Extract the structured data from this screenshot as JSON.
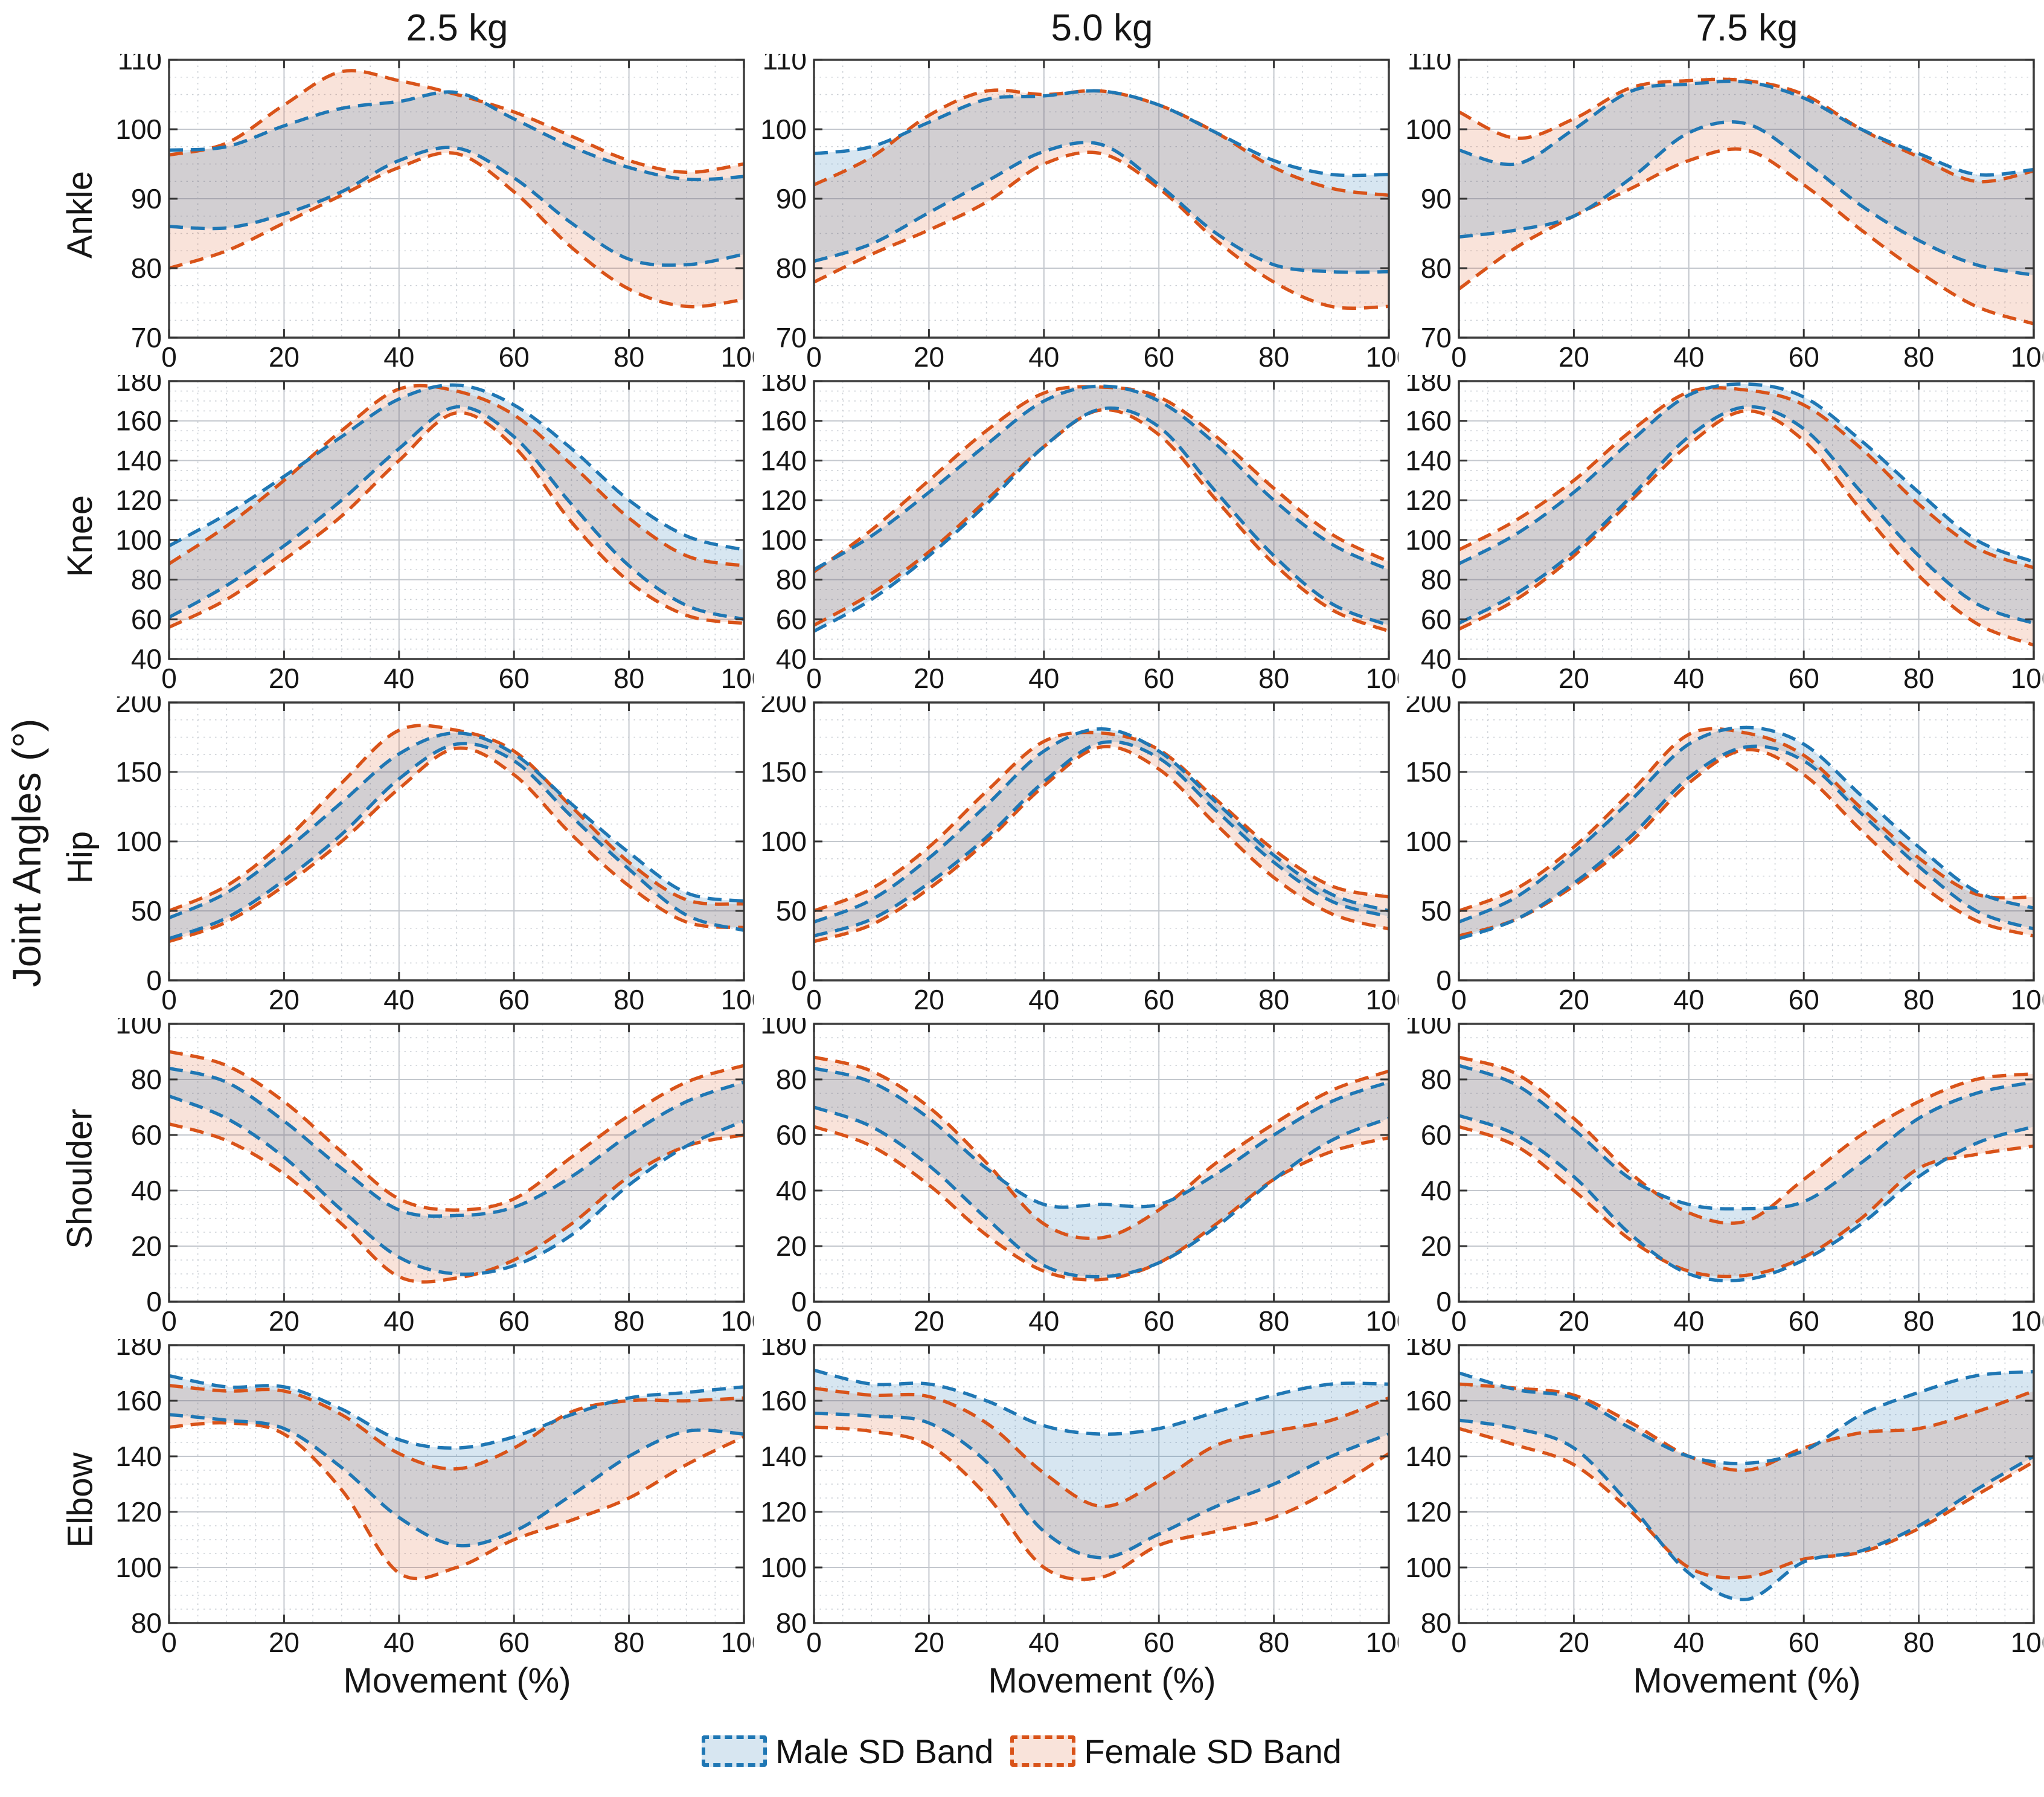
{
  "figure": {
    "ylabel": "Joint Angles (°)",
    "xlabel": "Movement (%)",
    "col_titles": [
      "2.5 kg",
      "5.0 kg",
      "7.5 kg"
    ],
    "row_labels": [
      "Ankle",
      "Knee",
      "Hip",
      "Shoulder",
      "Elbow"
    ],
    "colors": {
      "male_line": "#1f77b4",
      "male_fill": "rgba(31,119,180,0.18)",
      "female_line": "#d95319",
      "female_fill": "rgba(217,83,25,0.16)",
      "grid_major": "#c4c8ce",
      "grid_minor": "#ccd0d6",
      "axis_box": "#3f3f3f"
    },
    "legend": [
      {
        "label": "Male SD Band"
      },
      {
        "label": "Female SD Band"
      }
    ]
  },
  "chart_data": {
    "type": "area",
    "note": "15 subplots (5 joints x 3 loads). Each subplot shows male and female mean+/-SD bands (upper/lower bounds) of joint angle vs movement percentage.",
    "x": [
      0,
      10,
      20,
      30,
      40,
      50,
      60,
      70,
      80,
      90,
      100
    ],
    "xlim": [
      0,
      100
    ],
    "xticks": [
      0,
      20,
      40,
      60,
      80,
      100
    ],
    "legend_position": "bottom-center",
    "grid": true,
    "subplots": [
      {
        "row": "Ankle",
        "col": "2.5 kg",
        "ylim": [
          70,
          110
        ],
        "yticks": [
          70,
          80,
          90,
          100,
          110
        ],
        "series": {
          "male_upper": [
            97,
            97.5,
            100.5,
            103,
            104,
            105.3,
            101.5,
            97.5,
            94.5,
            92.8,
            93.2
          ],
          "male_lower": [
            86,
            85.8,
            87.8,
            91,
            95.5,
            97.3,
            93,
            86.5,
            81.3,
            80.5,
            82
          ],
          "female_upper": [
            96.3,
            98,
            103.5,
            108.3,
            107,
            105,
            102.5,
            99,
            95.5,
            93.8,
            95
          ],
          "female_lower": [
            80,
            82.5,
            86.5,
            90.5,
            94.5,
            96.5,
            91,
            83,
            77,
            74.5,
            75.5
          ]
        }
      },
      {
        "row": "Ankle",
        "col": "5.0 kg",
        "ylim": [
          70,
          110
        ],
        "yticks": [
          70,
          80,
          90,
          100,
          110
        ],
        "series": {
          "male_upper": [
            96.5,
            97.5,
            101,
            104.3,
            104.8,
            105.5,
            103.5,
            99.5,
            95.5,
            93.5,
            93.5
          ],
          "male_lower": [
            81,
            83.5,
            88,
            92.5,
            96.8,
            97.8,
            92,
            85,
            80.5,
            79.5,
            79.5
          ],
          "female_upper": [
            92,
            96,
            102,
            105.5,
            105,
            105.5,
            103.5,
            99.5,
            94.5,
            91.5,
            90.5
          ],
          "female_lower": [
            78,
            82,
            85.5,
            89.5,
            95,
            96.5,
            91.5,
            84,
            78,
            74.5,
            74.5
          ]
        }
      },
      {
        "row": "Ankle",
        "col": "7.5 kg",
        "ylim": [
          70,
          110
        ],
        "yticks": [
          70,
          80,
          90,
          100,
          110
        ],
        "series": {
          "male_upper": [
            97,
            95,
            100,
            105.5,
            106.5,
            106.8,
            104.5,
            100,
            96.5,
            93.5,
            94.2
          ],
          "male_lower": [
            84.5,
            85.5,
            87.5,
            93,
            99.5,
            100.8,
            95.5,
            89,
            84,
            80.5,
            79
          ],
          "female_upper": [
            102.5,
            98.7,
            101.5,
            106,
            107,
            107,
            105,
            100,
            96,
            92.5,
            94
          ],
          "female_lower": [
            77,
            83,
            87.5,
            91.5,
            95.5,
            97,
            92,
            85.5,
            79.5,
            74.5,
            72
          ]
        }
      },
      {
        "row": "Knee",
        "col": "2.5 kg",
        "ylim": [
          40,
          180
        ],
        "yticks": [
          40,
          60,
          80,
          100,
          120,
          140,
          160,
          180
        ],
        "series": {
          "male_upper": [
            97,
            113,
            132,
            152,
            171,
            178,
            168,
            146,
            120,
            102,
            95
          ],
          "male_lower": [
            61,
            77,
            97,
            120,
            146,
            167,
            152,
            118,
            87,
            67,
            60
          ],
          "female_upper": [
            88,
            107,
            130,
            155,
            176,
            175,
            163,
            138,
            111,
            92,
            87
          ],
          "female_lower": [
            56,
            70,
            90,
            112,
            140,
            164,
            147,
            109,
            79,
            62,
            58
          ]
        }
      },
      {
        "row": "Knee",
        "col": "5.0 kg",
        "ylim": [
          40,
          180
        ],
        "yticks": [
          40,
          60,
          80,
          100,
          120,
          140,
          160,
          180
        ],
        "series": {
          "male_upper": [
            85,
            102,
            124,
            148,
            170,
            177.5,
            170,
            148,
            120,
            98,
            85
          ],
          "male_lower": [
            54,
            70,
            92,
            118,
            147,
            166,
            157,
            124,
            92,
            68,
            57
          ],
          "female_upper": [
            84,
            105,
            130,
            155,
            174,
            177,
            172,
            152,
            126,
            103,
            89
          ],
          "female_lower": [
            57,
            73,
            94,
            120,
            147,
            165.5,
            153,
            120,
            88,
            65,
            54
          ]
        }
      },
      {
        "row": "Knee",
        "col": "7.5 kg",
        "ylim": [
          40,
          180
        ],
        "yticks": [
          40,
          60,
          80,
          100,
          120,
          140,
          160,
          180
        ],
        "series": {
          "male_upper": [
            88,
            103,
            124,
            150,
            173,
            178.5,
            172,
            150,
            124,
            100,
            89
          ],
          "male_lower": [
            58,
            73,
            94,
            122,
            152,
            167,
            156,
            124,
            92,
            68,
            58
          ],
          "female_upper": [
            95,
            110,
            130,
            155,
            174.5,
            175.5,
            168,
            146,
            118,
            96,
            86
          ],
          "female_lower": [
            55,
            70,
            92,
            120,
            148,
            165,
            150,
            115,
            82,
            58,
            47
          ]
        }
      },
      {
        "row": "Hip",
        "col": "2.5 kg",
        "ylim": [
          0,
          200
        ],
        "yticks": [
          0,
          50,
          100,
          150,
          200
        ],
        "series": {
          "male_upper": [
            45,
            63,
            93,
            128,
            163,
            178,
            163,
            127,
            92,
            63,
            57
          ],
          "male_lower": [
            30,
            45,
            72,
            105,
            145,
            170,
            158,
            118,
            80,
            47,
            36
          ],
          "female_upper": [
            50,
            68,
            100,
            142,
            180,
            180,
            165,
            125,
            85,
            58,
            55
          ],
          "female_lower": [
            28,
            42,
            68,
            100,
            138,
            167,
            148,
            105,
            68,
            42,
            38
          ]
        }
      },
      {
        "row": "Hip",
        "col": "5.0 kg",
        "ylim": [
          0,
          200
        ],
        "yticks": [
          0,
          50,
          100,
          150,
          200
        ],
        "series": {
          "male_upper": [
            42,
            58,
            88,
            126,
            165,
            181,
            165,
            128,
            90,
            62,
            50
          ],
          "male_lower": [
            32,
            44,
            70,
            103,
            143,
            171,
            160,
            122,
            85,
            57,
            46
          ],
          "female_upper": [
            50,
            66,
            96,
            136,
            172,
            178,
            166,
            130,
            94,
            68,
            60
          ],
          "female_lower": [
            28,
            40,
            66,
            100,
            140,
            168,
            152,
            112,
            74,
            48,
            37
          ]
        }
      },
      {
        "row": "Hip",
        "col": "7.5 kg",
        "ylim": [
          0,
          200
        ],
        "yticks": [
          0,
          50,
          100,
          150,
          200
        ],
        "series": {
          "male_upper": [
            42,
            60,
            92,
            130,
            170,
            182,
            170,
            133,
            96,
            64,
            52
          ],
          "male_lower": [
            30,
            44,
            70,
            104,
            146,
            168,
            158,
            120,
            82,
            50,
            37
          ],
          "female_upper": [
            50,
            66,
            96,
            136,
            177,
            178,
            162,
            124,
            88,
            62,
            60
          ],
          "female_lower": [
            32,
            44,
            68,
            100,
            142,
            166,
            148,
            108,
            70,
            43,
            32
          ]
        }
      },
      {
        "row": "Shoulder",
        "col": "2.5 kg",
        "ylim": [
          0,
          100
        ],
        "yticks": [
          0,
          20,
          40,
          60,
          80,
          100
        ],
        "series": {
          "male_upper": [
            84,
            79,
            65,
            48,
            33,
            31,
            34,
            45,
            60,
            72,
            79
          ],
          "male_lower": [
            74,
            66,
            52,
            33,
            16,
            10,
            13,
            24,
            42,
            56,
            65
          ],
          "female_upper": [
            90,
            85,
            72,
            54,
            37,
            33,
            37,
            52,
            67,
            79,
            85
          ],
          "female_lower": [
            64,
            58,
            46,
            28,
            9,
            8.5,
            15,
            28,
            45,
            56,
            60
          ]
        }
      },
      {
        "row": "Shoulder",
        "col": "5.0 kg",
        "ylim": [
          0,
          100
        ],
        "yticks": [
          0,
          20,
          40,
          60,
          80,
          100
        ],
        "series": {
          "male_upper": [
            84,
            79,
            66,
            48,
            35,
            35,
            35,
            46,
            60,
            72,
            79
          ],
          "male_lower": [
            70,
            63,
            49,
            30,
            13,
            9,
            14,
            27,
            44,
            58,
            66
          ],
          "female_upper": [
            88,
            83,
            70,
            50,
            28,
            23,
            33,
            50,
            64,
            76,
            83
          ],
          "female_lower": [
            63,
            56,
            42,
            24,
            11,
            8,
            14,
            28,
            44,
            54,
            59
          ]
        }
      },
      {
        "row": "Shoulder",
        "col": "7.5 kg",
        "ylim": [
          0,
          100
        ],
        "yticks": [
          0,
          20,
          40,
          60,
          80,
          100
        ],
        "series": {
          "male_upper": [
            85,
            78,
            62,
            44,
            35,
            33.5,
            36,
            50,
            66,
            75,
            79
          ],
          "male_lower": [
            67,
            60,
            45,
            24,
            10,
            8,
            15,
            28,
            45,
            57,
            63
          ],
          "female_upper": [
            88,
            82,
            66,
            46,
            32,
            29,
            44,
            60,
            72,
            80,
            82
          ],
          "female_lower": [
            63,
            56,
            40,
            22,
            11,
            9.5,
            16,
            30,
            48,
            53,
            56
          ]
        }
      },
      {
        "row": "Elbow",
        "col": "2.5 kg",
        "ylim": [
          80,
          180
        ],
        "yticks": [
          80,
          100,
          120,
          140,
          160,
          180
        ],
        "series": {
          "male_upper": [
            169,
            165,
            165,
            157,
            146,
            143,
            147,
            155,
            161,
            163,
            165
          ],
          "male_lower": [
            155,
            153,
            150,
            136,
            118,
            108,
            113,
            126,
            140,
            149,
            148
          ],
          "female_upper": [
            165.5,
            163.5,
            163.5,
            155,
            141,
            135.5,
            143,
            156,
            160,
            160,
            161
          ],
          "female_lower": [
            150.5,
            152,
            148,
            128,
            98,
            100,
            110,
            117,
            125,
            137,
            147
          ]
        }
      },
      {
        "row": "Elbow",
        "col": "5.0 kg",
        "ylim": [
          80,
          180
        ],
        "yticks": [
          80,
          100,
          120,
          140,
          160,
          180
        ],
        "series": {
          "male_upper": [
            171,
            166,
            166,
            160,
            151,
            148,
            150,
            156,
            162,
            166,
            166
          ],
          "male_lower": [
            155.5,
            154.5,
            152,
            138,
            113,
            103.5,
            112,
            122,
            130,
            140,
            148
          ],
          "female_upper": [
            164.5,
            162,
            161.5,
            152,
            134,
            122,
            131,
            144,
            149,
            153,
            161
          ],
          "female_lower": [
            150.5,
            149,
            144,
            126,
            100,
            96.5,
            108,
            113,
            118,
            128,
            141
          ]
        }
      },
      {
        "row": "Elbow",
        "col": "7.5 kg",
        "ylim": [
          80,
          180
        ],
        "yticks": [
          80,
          100,
          120,
          140,
          160,
          180
        ],
        "series": {
          "male_upper": [
            170,
            164,
            161,
            150,
            140,
            137.5,
            142,
            155,
            163,
            169,
            170.5
          ],
          "male_lower": [
            153,
            150,
            143,
            122,
            98,
            88.5,
            102,
            106,
            115,
            128,
            140
          ],
          "female_upper": [
            166,
            164.5,
            162,
            152,
            140,
            135,
            143,
            148.5,
            150,
            156,
            163.5
          ],
          "female_lower": [
            150,
            144,
            137,
            120,
            100,
            96.5,
            103,
            105.5,
            114,
            126,
            138
          ]
        }
      }
    ]
  }
}
